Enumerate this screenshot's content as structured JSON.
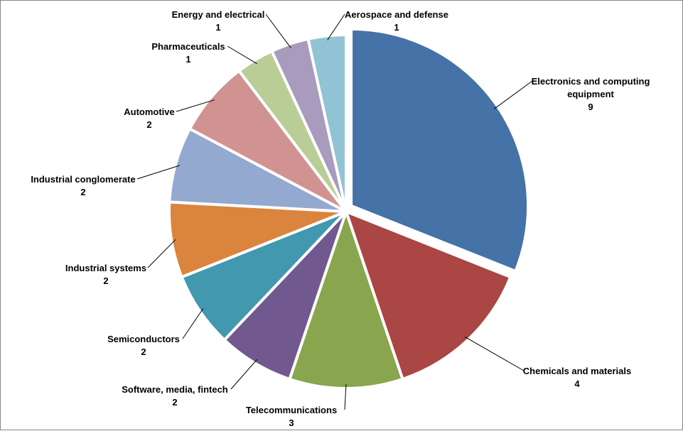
{
  "chart_data": {
    "type": "pie",
    "title": "",
    "slices": [
      {
        "label": "Electronics and computing equipment",
        "value": 9,
        "color": "#4572A7"
      },
      {
        "label": "Chemicals and materials",
        "value": 4,
        "color": "#AA4643"
      },
      {
        "label": "Telecommunications",
        "value": 3,
        "color": "#89A54E"
      },
      {
        "label": "Software, media, fintech",
        "value": 2,
        "color": "#71588F"
      },
      {
        "label": "Semiconductors",
        "value": 2,
        "color": "#4198AF"
      },
      {
        "label": "Industrial systems",
        "value": 2,
        "color": "#DB843D"
      },
      {
        "label": "Industrial conglomerate",
        "value": 2,
        "color": "#93A9CF"
      },
      {
        "label": "Automotive",
        "value": 2,
        "color": "#D19392"
      },
      {
        "label": "Pharmaceuticals",
        "value": 1,
        "color": "#B9CD96"
      },
      {
        "label": "Energy and electrical",
        "value": 1,
        "color": "#A99BBD"
      },
      {
        "label": "Aerospace and defense",
        "value": 1,
        "color": "#92C3D4"
      }
    ],
    "start_angle": "12 o'clock",
    "direction": "clockwise",
    "exploded_slice": "Electronics and computing equipment",
    "legend": "none",
    "data_labels": "category name and value, with leader lines"
  }
}
